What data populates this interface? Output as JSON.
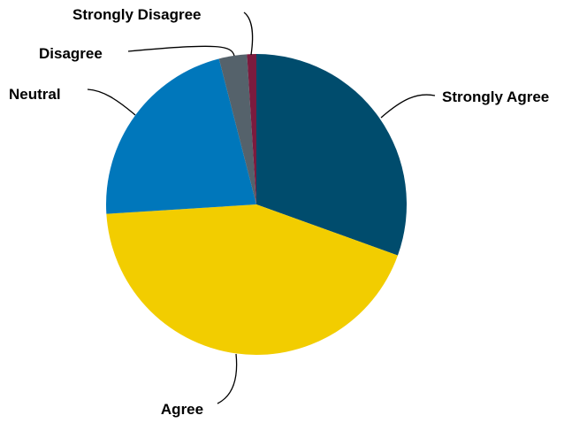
{
  "chart_data": {
    "type": "pie",
    "title": "",
    "unit": "%",
    "slices": [
      {
        "label": "Strongly Agree",
        "value": 30.5,
        "color": "#004C6D"
      },
      {
        "label": "Agree",
        "value": 43.5,
        "color": "#F2CD00"
      },
      {
        "label": "Neutral",
        "value": 22.0,
        "color": "#0077BB"
      },
      {
        "label": "Disagree",
        "value": 3.0,
        "color": "#55626B"
      },
      {
        "label": "Strongly Disagree",
        "value": 1.0,
        "color": "#7B1B3E"
      }
    ],
    "legend": "none",
    "labels": "outside with leader lines"
  }
}
